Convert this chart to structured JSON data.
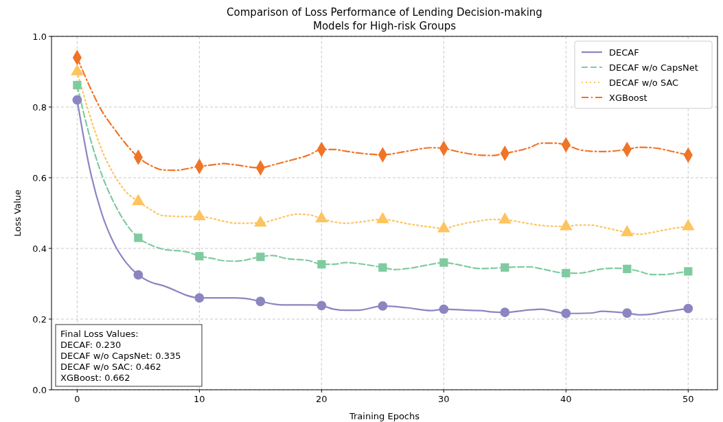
{
  "chart_data": {
    "type": "line",
    "title": "Comparison of Loss Performance of Lending Decision-making\nModels for High-risk Groups",
    "xlabel": "Training Epochs",
    "ylabel": "Loss Value",
    "xlim": [
      -2.1,
      52.4
    ],
    "ylim": [
      0,
      1
    ],
    "xticks": [
      0,
      10,
      20,
      30,
      40,
      50
    ],
    "yticks": [
      {
        "value": 0,
        "label": "0.0"
      },
      {
        "value": 0.2,
        "label": "0.2"
      },
      {
        "value": 0.4,
        "label": "0.4"
      },
      {
        "value": 0.6,
        "label": "0.6"
      },
      {
        "value": 0.8,
        "label": "0.8"
      },
      {
        "value": 1,
        "label": "1.0"
      }
    ],
    "grid": true,
    "legend": "top right",
    "annotations": [
      "Final Loss Values:\nDECAF: 0.230\nDECAF w/o CapsNet: 0.335\nDECAF w/o SAC: 0.462\nXGBoost: 0.662"
    ],
    "series": [
      {
        "name": "DECAF",
        "color": "#8b85c1",
        "line_style": "solid",
        "x": [
          0,
          1,
          2,
          3,
          4,
          5,
          6,
          7,
          10,
          11,
          13,
          14,
          15,
          16,
          17,
          19,
          20,
          21,
          22,
          23,
          25,
          27,
          29,
          30,
          32,
          33,
          34,
          35,
          37,
          38,
          39,
          40,
          42,
          43,
          44,
          45,
          46,
          47,
          48,
          50
        ],
        "values": [
          0.82,
          0.63,
          0.5,
          0.415,
          0.36,
          0.325,
          0.305,
          0.295,
          0.26,
          0.26,
          0.26,
          0.257,
          0.25,
          0.243,
          0.24,
          0.24,
          0.238,
          0.228,
          0.225,
          0.225,
          0.237,
          0.232,
          0.224,
          0.228,
          0.225,
          0.224,
          0.22,
          0.219,
          0.226,
          0.228,
          0.222,
          0.216,
          0.217,
          0.222,
          0.22,
          0.217,
          0.212,
          0.214,
          0.22,
          0.23
        ]
      },
      {
        "name": "DECAF w/o CapsNet",
        "color": "#7fcba0",
        "line_style": "dashed",
        "x": [
          0,
          1,
          2,
          3,
          4,
          5,
          6,
          7,
          9,
          10,
          11,
          12,
          13,
          15,
          16,
          17,
          19,
          20,
          21,
          22,
          23,
          25,
          26,
          27,
          29,
          30,
          31,
          33,
          34,
          35,
          37,
          38,
          40,
          41,
          43,
          44,
          45,
          46,
          47,
          48,
          49,
          50
        ],
        "values": [
          0.862,
          0.72,
          0.61,
          0.53,
          0.47,
          0.43,
          0.41,
          0.398,
          0.39,
          0.378,
          0.372,
          0.365,
          0.364,
          0.376,
          0.38,
          0.372,
          0.365,
          0.355,
          0.355,
          0.36,
          0.357,
          0.346,
          0.34,
          0.343,
          0.355,
          0.36,
          0.355,
          0.343,
          0.344,
          0.346,
          0.348,
          0.342,
          0.33,
          0.33,
          0.342,
          0.344,
          0.342,
          0.335,
          0.326,
          0.326,
          0.33,
          0.335
        ]
      },
      {
        "name": "DECAF w/o SAC",
        "color": "#fdc45f",
        "line_style": "dotted",
        "x": [
          0,
          1,
          2,
          3,
          4,
          5,
          6,
          7,
          9,
          10,
          12,
          13,
          15,
          16,
          17,
          18,
          19,
          20,
          21,
          22,
          23,
          25,
          27,
          29,
          30,
          31,
          33,
          34,
          35,
          37,
          38,
          40,
          41,
          42,
          43,
          45,
          46,
          47,
          49,
          50
        ],
        "values": [
          0.9,
          0.78,
          0.68,
          0.61,
          0.56,
          0.533,
          0.51,
          0.493,
          0.49,
          0.49,
          0.477,
          0.471,
          0.472,
          0.48,
          0.49,
          0.497,
          0.495,
          0.484,
          0.475,
          0.471,
          0.474,
          0.482,
          0.47,
          0.46,
          0.456,
          0.465,
          0.478,
          0.482,
          0.481,
          0.47,
          0.465,
          0.462,
          0.466,
          0.466,
          0.46,
          0.445,
          0.44,
          0.445,
          0.458,
          0.462
        ]
      },
      {
        "name": "XGBoost",
        "color": "#f07426",
        "line_style": "dashdot",
        "x": [
          0,
          1,
          2,
          3,
          4,
          5,
          6,
          7,
          8,
          10,
          11,
          12,
          13,
          15,
          16,
          17,
          19,
          20,
          21,
          22,
          23,
          25,
          27,
          29,
          30,
          31,
          33,
          34,
          35,
          37,
          38,
          39,
          40,
          41,
          42,
          43,
          45,
          46,
          47,
          49,
          50
        ],
        "values": [
          0.94,
          0.86,
          0.79,
          0.74,
          0.695,
          0.658,
          0.635,
          0.622,
          0.621,
          0.632,
          0.636,
          0.64,
          0.636,
          0.628,
          0.636,
          0.645,
          0.665,
          0.68,
          0.68,
          0.675,
          0.67,
          0.665,
          0.675,
          0.685,
          0.683,
          0.675,
          0.664,
          0.663,
          0.669,
          0.685,
          0.698,
          0.698,
          0.693,
          0.68,
          0.675,
          0.674,
          0.68,
          0.686,
          0.685,
          0.672,
          0.664
        ]
      },
      {
        "type": "scatter",
        "marker": "circle",
        "color": "#8b85c1",
        "x": [
          0,
          5,
          10,
          15,
          20,
          25,
          30,
          35,
          40,
          45,
          50
        ],
        "values": [
          0.82,
          0.325,
          0.26,
          0.25,
          0.238,
          0.237,
          0.228,
          0.219,
          0.216,
          0.217,
          0.23
        ]
      },
      {
        "type": "scatter",
        "marker": "square",
        "color": "#7fcba0",
        "x": [
          0,
          5,
          10,
          15,
          20,
          25,
          30,
          35,
          40,
          45,
          50
        ],
        "values": [
          0.862,
          0.43,
          0.378,
          0.376,
          0.355,
          0.346,
          0.36,
          0.346,
          0.33,
          0.342,
          0.335
        ]
      },
      {
        "type": "scatter",
        "marker": "triangle",
        "color": "#fdc45f",
        "x": [
          0,
          5,
          10,
          15,
          20,
          25,
          30,
          35,
          40,
          45,
          50
        ],
        "values": [
          0.9,
          0.533,
          0.49,
          0.472,
          0.484,
          0.482,
          0.456,
          0.481,
          0.462,
          0.445,
          0.462
        ]
      },
      {
        "type": "scatter",
        "marker": "diamond",
        "color": "#f07426",
        "x": [
          0,
          5,
          10,
          15,
          20,
          25,
          30,
          35,
          40,
          45,
          50
        ],
        "values": [
          0.94,
          0.658,
          0.632,
          0.628,
          0.68,
          0.665,
          0.683,
          0.669,
          0.693,
          0.68,
          0.664
        ]
      }
    ]
  }
}
